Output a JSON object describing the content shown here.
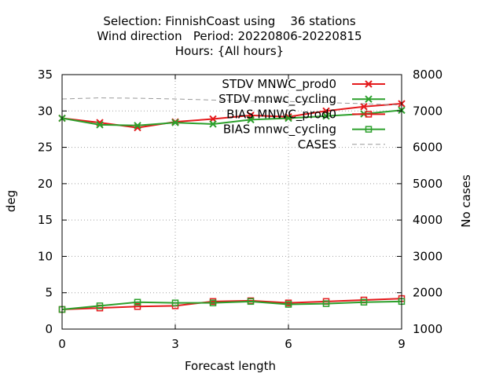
{
  "chart_data": {
    "type": "line",
    "title_lines": [
      "Selection: FinnishCoast using    36 stations",
      "Wind direction   Period: 20220806-20220815",
      "Hours: {All hours}"
    ],
    "xlabel": "Forecast length",
    "ylabel": "deg",
    "y2label": "No cases",
    "xlim": [
      0,
      9
    ],
    "ylim": [
      0,
      35
    ],
    "y2lim": [
      1000,
      8000
    ],
    "xticks": [
      0,
      3,
      6,
      9
    ],
    "yticks": [
      0,
      5,
      10,
      15,
      20,
      25,
      30,
      35
    ],
    "y2ticks": [
      1000,
      2000,
      3000,
      4000,
      5000,
      6000,
      7000,
      8000
    ],
    "grid": true,
    "legend_position": "top-right",
    "x": [
      0,
      1,
      2,
      3,
      4,
      5,
      6,
      7,
      8,
      9
    ],
    "series": [
      {
        "name": "STDV MNWC_prod0",
        "color": "#e41a1c",
        "marker": "x",
        "axis": "y",
        "values": [
          29.0,
          28.4,
          27.7,
          28.5,
          28.9,
          29.4,
          29.2,
          30.0,
          30.6,
          31.0
        ]
      },
      {
        "name": "STDV mnwc_cycling",
        "color": "#2ca02c",
        "marker": "x",
        "axis": "y",
        "values": [
          29.0,
          28.1,
          28.0,
          28.4,
          28.2,
          28.8,
          29.0,
          29.3,
          29.6,
          30.1
        ]
      },
      {
        "name": "BIAS MNWC_prod0",
        "color": "#e41a1c",
        "marker": "square",
        "axis": "y",
        "values": [
          2.7,
          2.9,
          3.1,
          3.2,
          3.8,
          3.9,
          3.6,
          3.8,
          4.0,
          4.2
        ]
      },
      {
        "name": "BIAS mnwc_cycling",
        "color": "#2ca02c",
        "marker": "square",
        "axis": "y",
        "values": [
          2.7,
          3.2,
          3.7,
          3.6,
          3.6,
          3.8,
          3.4,
          3.5,
          3.7,
          3.8
        ]
      },
      {
        "name": "CASES",
        "color": "#999999",
        "marker": "none",
        "dashed": true,
        "axis": "y2",
        "values": [
          7330,
          7360,
          7350,
          7330,
          7300,
          7280,
          7260,
          7230,
          7200,
          7160
        ]
      }
    ]
  }
}
